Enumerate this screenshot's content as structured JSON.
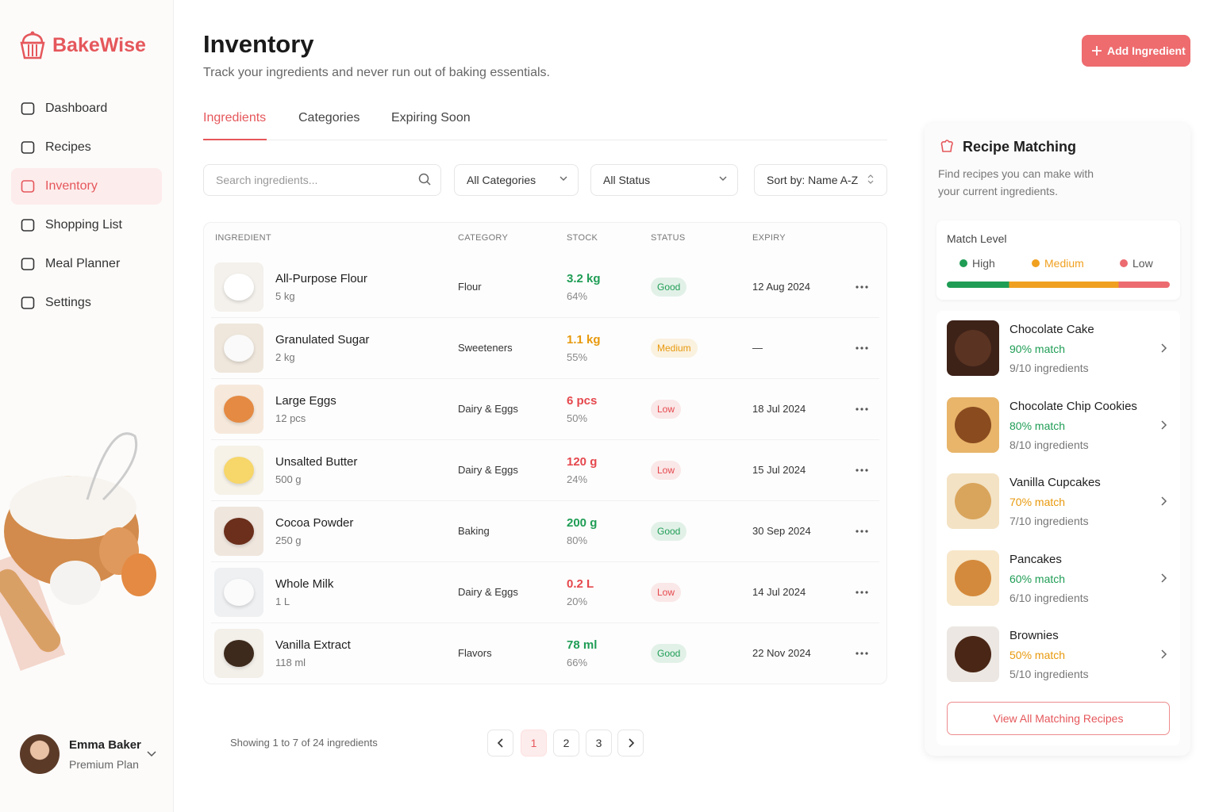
{
  "brand": "BakeWise",
  "nav": [
    {
      "label": "Dashboard",
      "active": false
    },
    {
      "label": "Recipes",
      "active": false
    },
    {
      "label": "Inventory",
      "active": true
    },
    {
      "label": "Shopping List",
      "active": false
    },
    {
      "label": "Meal Planner",
      "active": false
    },
    {
      "label": "Settings",
      "active": false
    }
  ],
  "user": {
    "name": "Emma Baker",
    "plan": "Premium Plan"
  },
  "header": {
    "title": "Inventory",
    "subtitle": "Track your ingredients and never run out of baking essentials.",
    "button": "Add Ingredient"
  },
  "tabs": [
    {
      "label": "Ingredients",
      "active": true
    },
    {
      "label": "Categories",
      "active": false
    },
    {
      "label": "Expiring Soon",
      "active": false
    }
  ],
  "filters": {
    "search": "Search ingredients...",
    "category": "All Categories",
    "status": "All Status",
    "sort": "Sort by: Name A-Z"
  },
  "table": {
    "columns": [
      "INGREDIENT",
      "CATEGORY",
      "STOCK",
      "STATUS",
      "EXPIRY"
    ],
    "rows": [
      {
        "name": "All-Purpose Flour",
        "size": "5 kg",
        "category": "Flour",
        "stock": "3.2 kg",
        "percent": "64%",
        "status": "Good",
        "expiry": "12 Aug 2024",
        "color": "#1f9d55"
      },
      {
        "name": "Granulated Sugar",
        "size": "2 kg",
        "category": "Sweeteners",
        "stock": "1.1 kg",
        "percent": "55%",
        "status": "Medium",
        "expiry": "—",
        "color": "#e8990c"
      },
      {
        "name": "Large Eggs",
        "size": "12 pcs",
        "category": "Dairy & Eggs",
        "stock": "6 pcs",
        "percent": "50%",
        "status": "Low",
        "expiry": "18 Jul 2024",
        "color": "#e5484d"
      },
      {
        "name": "Unsalted Butter",
        "size": "500 g",
        "category": "Dairy & Eggs",
        "stock": "120 g",
        "percent": "24%",
        "status": "Low",
        "expiry": "15 Jul 2024",
        "color": "#e5484d"
      },
      {
        "name": "Cocoa Powder",
        "size": "250 g",
        "category": "Baking",
        "stock": "200 g",
        "percent": "80%",
        "status": "Good",
        "expiry": "30 Sep 2024",
        "color": "#1f9d55"
      },
      {
        "name": "Whole Milk",
        "size": "1 L",
        "category": "Dairy & Eggs",
        "stock": "0.2 L",
        "percent": "20%",
        "status": "Low",
        "expiry": "14 Jul 2024",
        "color": "#e5484d"
      },
      {
        "name": "Vanilla Extract",
        "size": "118 ml",
        "category": "Flavors",
        "stock": "78 ml",
        "percent": "66%",
        "status": "Good",
        "expiry": "22 Nov 2024",
        "color": "#1f9d55"
      }
    ]
  },
  "pagination": {
    "summary": "Showing 1 to 7 of 24 ingredients",
    "pages": [
      1,
      2,
      3
    ],
    "current": 1
  },
  "panel": {
    "title": "Recipe Matching",
    "description": "Find recipes you can make with your current ingredients.",
    "match_title": "Match Level",
    "levels": [
      {
        "name": "High",
        "color": "#1f9d55"
      },
      {
        "name": "Medium",
        "color": "#f0a020"
      },
      {
        "name": "Low",
        "color": "#ec6b70"
      }
    ],
    "recipes": [
      {
        "name": "Chocolate Cake",
        "match": "90% match",
        "ingredients": "9/10 ingredients",
        "color": "#1f9d55"
      },
      {
        "name": "Chocolate Chip Cookies",
        "match": "80% match",
        "ingredients": "8/10 ingredients",
        "color": "#1f9d55"
      },
      {
        "name": "Vanilla Cupcakes",
        "match": "70% match",
        "ingredients": "7/10 ingredients",
        "color": "#e8990c"
      },
      {
        "name": "Pancakes",
        "match": "60% match",
        "ingredients": "6/10 ingredients",
        "color": "#1f9d55"
      },
      {
        "name": "Brownies",
        "match": "50% match",
        "ingredients": "5/10 ingredients",
        "color": "#e8990c"
      }
    ],
    "button": "View All Matching Recipes"
  }
}
